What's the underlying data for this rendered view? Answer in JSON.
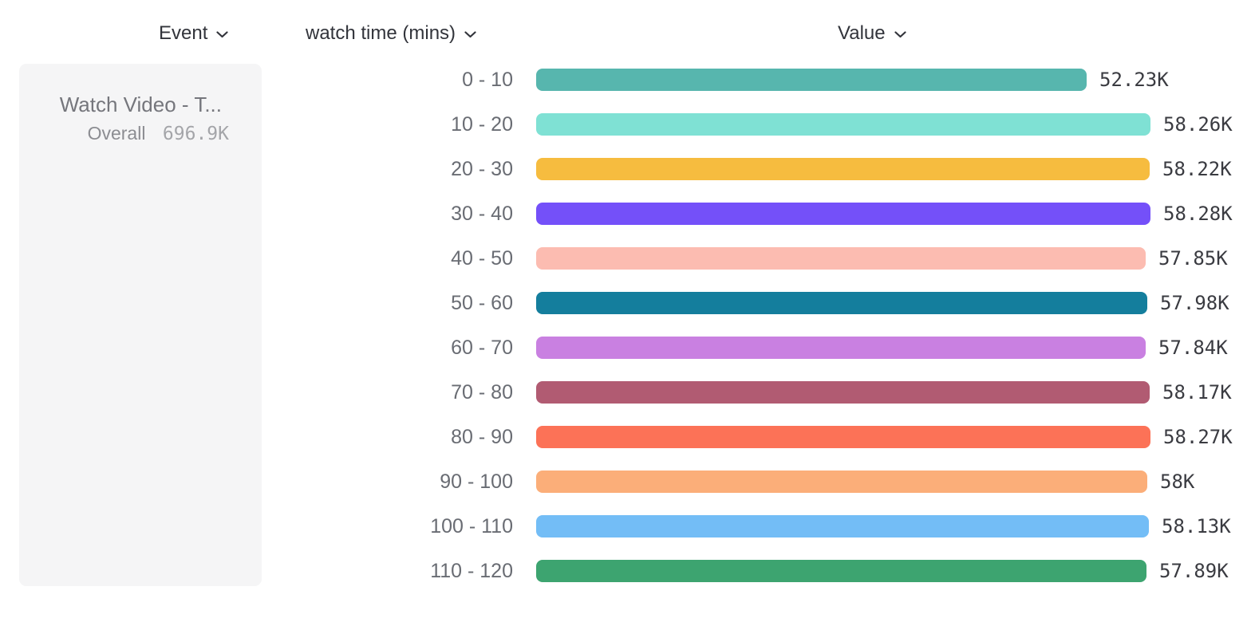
{
  "header": {
    "event": {
      "label": "Event"
    },
    "breakdown": {
      "label": "watch time (mins)"
    },
    "value": {
      "label": "Value"
    }
  },
  "legend": {
    "event_title": "Watch Video - T...",
    "overall_label": "Overall",
    "overall_value": "696.9K"
  },
  "chart_data": {
    "type": "bar",
    "orientation": "horizontal",
    "title": "",
    "xlabel": "Value",
    "ylabel": "watch time (mins)",
    "grid": false,
    "xlim": [
      0,
      58280
    ],
    "categories": [
      "0 - 10",
      "10 - 20",
      "20 - 30",
      "30 - 40",
      "40 - 50",
      "50 - 60",
      "60 - 70",
      "70 - 80",
      "80 - 90",
      "90 - 100",
      "100 - 110",
      "110 - 120"
    ],
    "values": [
      52230,
      58260,
      58220,
      58280,
      57850,
      57980,
      57840,
      58170,
      58270,
      58000,
      58130,
      57890
    ],
    "value_labels": [
      "52.23K",
      "58.26K",
      "58.22K",
      "58.28K",
      "57.85K",
      "57.98K",
      "57.84K",
      "58.17K",
      "58.27K",
      "58K",
      "58.13K",
      "57.89K"
    ],
    "colors": [
      "#57b6ae",
      "#7fe1d4",
      "#f6bc3f",
      "#7450f9",
      "#fcbcb1",
      "#147e9d",
      "#c980e1",
      "#b15b72",
      "#fc7257",
      "#fbae79",
      "#73bdf6",
      "#3da470"
    ],
    "overall_total_label": "696.9K"
  }
}
